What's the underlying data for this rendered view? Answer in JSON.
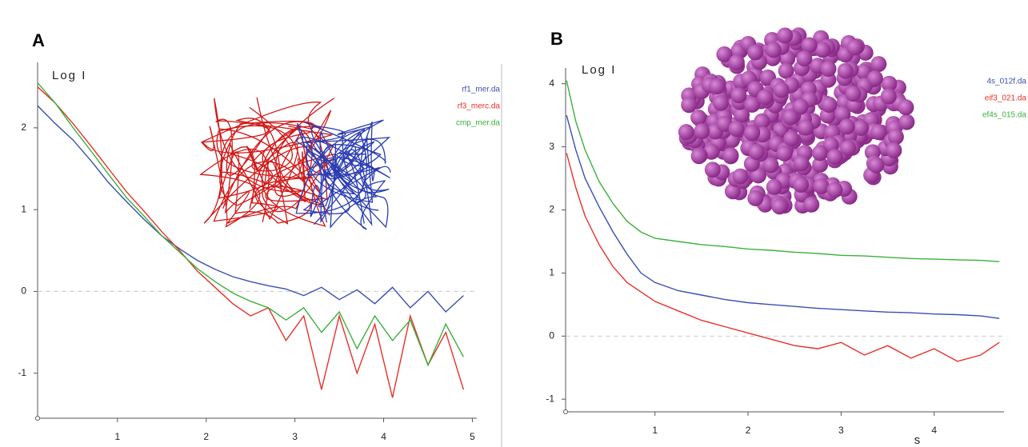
{
  "chart_data": [
    {
      "type": "line",
      "panel": "A",
      "y_label": "Log I",
      "x": [
        0.1,
        0.3,
        0.5,
        0.7,
        0.9,
        1.1,
        1.3,
        1.5,
        1.7,
        1.9,
        2.1,
        2.3,
        2.5,
        2.7,
        2.9,
        3.1,
        3.3,
        3.5,
        3.7,
        3.9,
        4.1,
        4.3,
        4.5,
        4.7,
        4.9
      ],
      "series": [
        {
          "name": "rf1_mer.da",
          "color": "#3a4fb0",
          "values": [
            2.27,
            2.05,
            1.85,
            1.6,
            1.33,
            1.1,
            0.88,
            0.68,
            0.52,
            0.38,
            0.27,
            0.18,
            0.12,
            0.07,
            0.03,
            -0.05,
            0.05,
            -0.1,
            0.02,
            -0.15,
            0.05,
            -0.2,
            0.0,
            -0.25,
            -0.05
          ]
        },
        {
          "name": "rf3_merc.da",
          "color": "#e8302a",
          "values": [
            2.5,
            2.3,
            2.05,
            1.78,
            1.5,
            1.22,
            0.98,
            0.73,
            0.5,
            0.25,
            0.05,
            -0.15,
            -0.3,
            -0.2,
            -0.6,
            -0.3,
            -1.2,
            -0.3,
            -1.0,
            -0.4,
            -1.3,
            -0.3,
            -0.9,
            -0.5,
            -1.2
          ]
        },
        {
          "name": "cmp_mer.da",
          "color": "#3bb03b",
          "values": [
            2.55,
            2.3,
            2.0,
            1.72,
            1.43,
            1.15,
            0.92,
            0.68,
            0.48,
            0.28,
            0.12,
            -0.02,
            -0.12,
            -0.2,
            -0.35,
            -0.2,
            -0.5,
            -0.25,
            -0.7,
            -0.3,
            -0.6,
            -0.35,
            -0.9,
            -0.4,
            -0.8
          ]
        }
      ],
      "xlim": [
        0.1,
        5.05
      ],
      "ylim": [
        -1.55,
        2.8
      ],
      "xticks": [
        1,
        2,
        3,
        4,
        5
      ],
      "yticks": [
        -1,
        0,
        1,
        2
      ],
      "hline": 0
    },
    {
      "type": "line",
      "panel": "B",
      "y_label": "Log I",
      "x_label": "s",
      "x": [
        0.05,
        0.15,
        0.25,
        0.4,
        0.55,
        0.7,
        0.85,
        1.0,
        1.25,
        1.5,
        1.75,
        2.0,
        2.25,
        2.5,
        2.75,
        3.0,
        3.25,
        3.5,
        3.75,
        4.0,
        4.25,
        4.5,
        4.7
      ],
      "series": [
        {
          "name": "4s_012f.da",
          "color": "#3a4fb0",
          "values": [
            3.5,
            2.95,
            2.5,
            2.05,
            1.65,
            1.3,
            1.0,
            0.85,
            0.72,
            0.65,
            0.58,
            0.53,
            0.5,
            0.47,
            0.44,
            0.42,
            0.4,
            0.38,
            0.37,
            0.35,
            0.34,
            0.32,
            0.28
          ]
        },
        {
          "name": "eif3_021.da",
          "color": "#e8302a",
          "values": [
            2.9,
            2.35,
            1.9,
            1.45,
            1.1,
            0.85,
            0.7,
            0.55,
            0.4,
            0.25,
            0.15,
            0.05,
            -0.05,
            -0.15,
            -0.2,
            -0.1,
            -0.3,
            -0.15,
            -0.35,
            -0.2,
            -0.4,
            -0.3,
            -0.1
          ]
        },
        {
          "name": "ef4s_015.da",
          "color": "#3bb03b",
          "values": [
            4.05,
            3.4,
            2.95,
            2.45,
            2.1,
            1.82,
            1.65,
            1.55,
            1.5,
            1.45,
            1.42,
            1.38,
            1.36,
            1.33,
            1.31,
            1.28,
            1.27,
            1.25,
            1.23,
            1.22,
            1.21,
            1.2,
            1.18
          ]
        }
      ],
      "xlim": [
        0.04,
        4.75
      ],
      "ylim": [
        -1.2,
        4.25
      ],
      "xticks": [
        1,
        2,
        3,
        4
      ],
      "yticks": [
        -1,
        0,
        1,
        2,
        3,
        4
      ],
      "hline": 0
    }
  ]
}
